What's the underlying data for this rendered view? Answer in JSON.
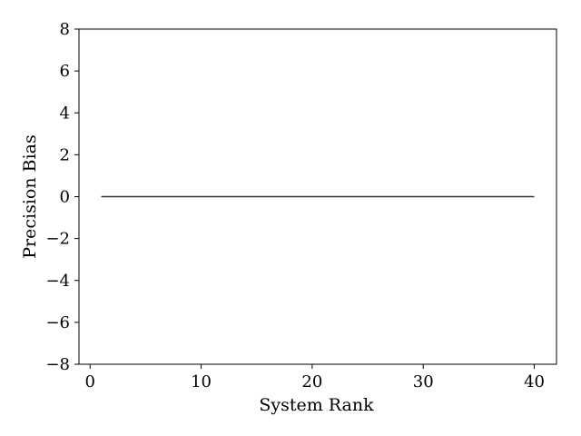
{
  "chart_data": {
    "type": "line",
    "title": "",
    "xlabel": "System Rank",
    "ylabel": "Precision Bias",
    "xlim": [
      -1,
      42
    ],
    "ylim": [
      -8,
      8
    ],
    "x_ticks": [
      0,
      10,
      20,
      30,
      40
    ],
    "y_ticks": [
      -8,
      -6,
      -4,
      -2,
      0,
      2,
      4,
      6,
      8
    ],
    "x_tick_labels": [
      "0",
      "10",
      "20",
      "30",
      "40"
    ],
    "y_tick_labels": [
      "−8",
      "−6",
      "−4",
      "−2",
      "0",
      "2",
      "4",
      "6",
      "8"
    ],
    "grid": false,
    "series": [
      {
        "color": "#333333",
        "x": [
          1,
          40
        ],
        "y": [
          0,
          0
        ]
      }
    ]
  }
}
